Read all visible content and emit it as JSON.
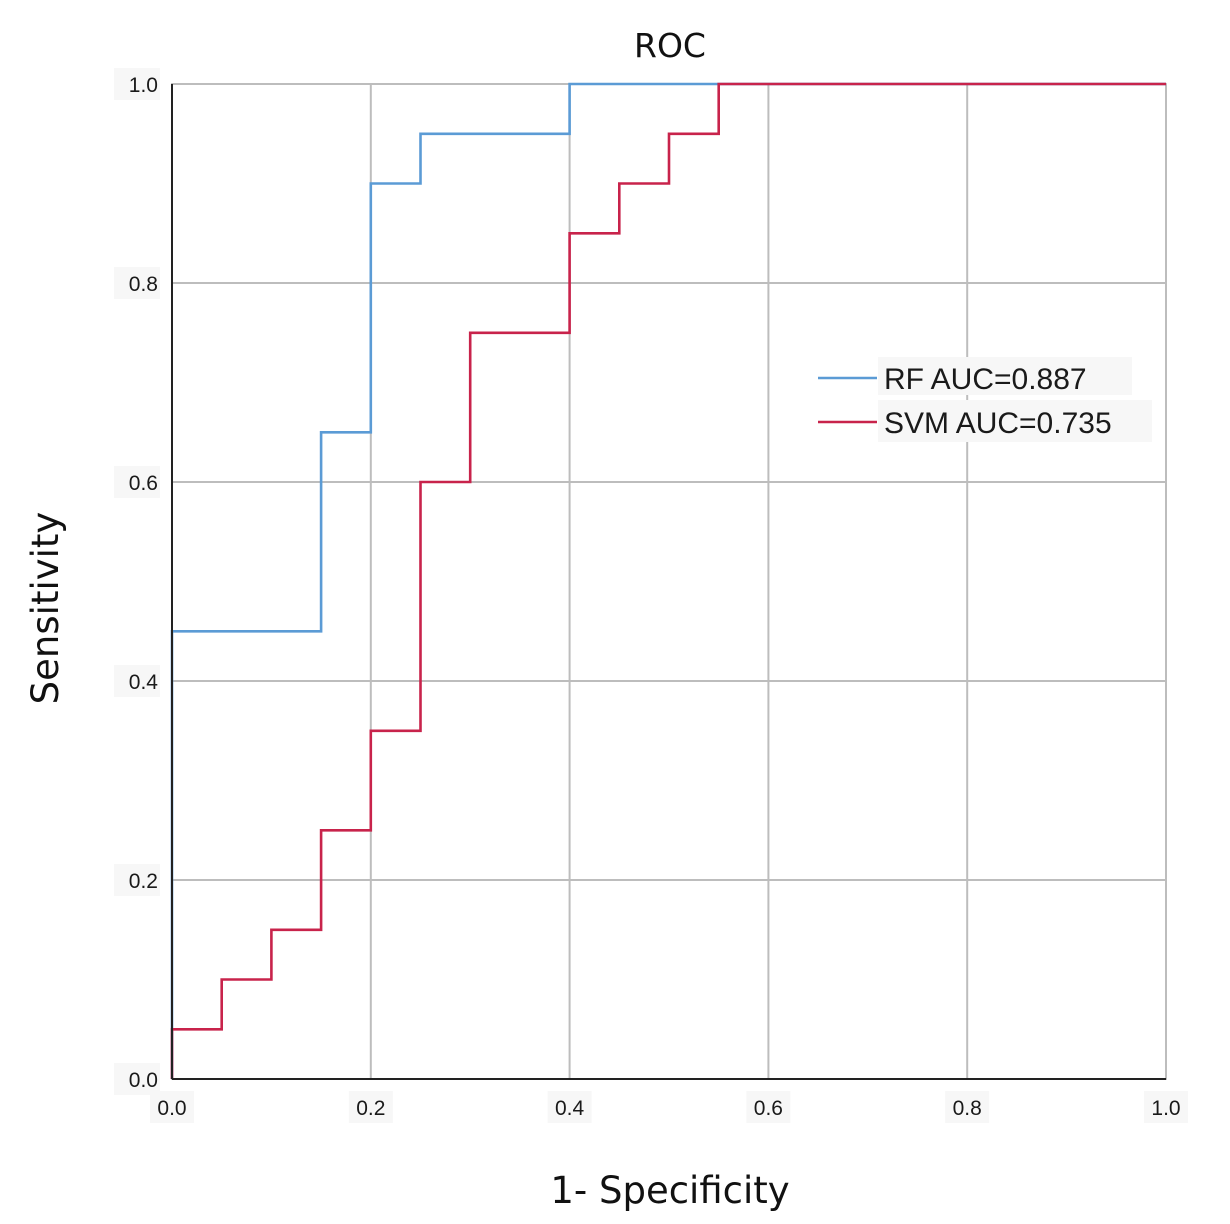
{
  "chart_data": {
    "type": "line",
    "title": "ROC",
    "xlabel": "1- Specificity",
    "ylabel": "Sensitivity",
    "xlim": [
      0,
      1
    ],
    "ylim": [
      0,
      1
    ],
    "grid": true,
    "legend_position": "right-upper",
    "x_ticks": [
      "0.0",
      "0.2",
      "0.4",
      "0.6",
      "0.8",
      "1.0"
    ],
    "y_ticks": [
      "0.0",
      "0.2",
      "0.4",
      "0.6",
      "0.8",
      "1.0"
    ],
    "series": [
      {
        "name": "RF",
        "legend_label": "RF AUC=0.887",
        "color": "#5b9bd5",
        "step": true,
        "points": [
          [
            0,
            0
          ],
          [
            0,
            0.45
          ],
          [
            0.15,
            0.45
          ],
          [
            0.15,
            0.65
          ],
          [
            0.2,
            0.65
          ],
          [
            0.2,
            0.9
          ],
          [
            0.25,
            0.9
          ],
          [
            0.25,
            0.95
          ],
          [
            0.4,
            0.95
          ],
          [
            0.4,
            1.0
          ],
          [
            1.0,
            1.0
          ]
        ]
      },
      {
        "name": "SVM",
        "legend_label": "SVM AUC=0.735",
        "color": "#c8234b",
        "step": true,
        "points": [
          [
            0,
            0
          ],
          [
            0,
            0.05
          ],
          [
            0.05,
            0.05
          ],
          [
            0.05,
            0.1
          ],
          [
            0.1,
            0.1
          ],
          [
            0.1,
            0.15
          ],
          [
            0.15,
            0.15
          ],
          [
            0.15,
            0.25
          ],
          [
            0.2,
            0.25
          ],
          [
            0.2,
            0.35
          ],
          [
            0.25,
            0.35
          ],
          [
            0.25,
            0.6
          ],
          [
            0.3,
            0.6
          ],
          [
            0.3,
            0.75
          ],
          [
            0.4,
            0.75
          ],
          [
            0.4,
            0.85
          ],
          [
            0.45,
            0.85
          ],
          [
            0.45,
            0.9
          ],
          [
            0.5,
            0.9
          ],
          [
            0.5,
            0.95
          ],
          [
            0.55,
            0.95
          ],
          [
            0.55,
            1.0
          ],
          [
            1.0,
            1.0
          ]
        ]
      }
    ]
  }
}
